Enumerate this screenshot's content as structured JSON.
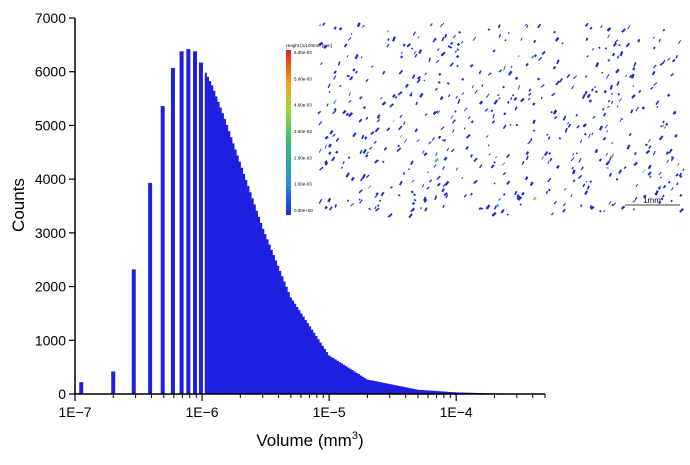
{
  "chart_data": {
    "type": "bar",
    "xlabel": "Volume (mm",
    "xlabel_sup": "3",
    "xlabel_end": ")",
    "ylabel": "Counts",
    "x_scale": "log",
    "xlim": [
      1e-07,
      0.0005
    ],
    "ylim": [
      0,
      7000
    ],
    "x_ticks": [
      1e-07,
      1e-06,
      1e-05,
      0.0001
    ],
    "x_tick_labels": [
      "1E−7",
      "1E−6",
      "1E−5",
      "1E−4"
    ],
    "y_ticks": [
      0,
      1000,
      2000,
      3000,
      4000,
      5000,
      6000,
      7000
    ],
    "y_tick_labels": [
      "0",
      "1000",
      "2000",
      "3000",
      "4000",
      "5000",
      "6000",
      "7000"
    ],
    "bar_color": "#1f1fe0",
    "discrete_bars": [
      {
        "x": 1.12e-07,
        "y": 220
      },
      {
        "x": 2e-07,
        "y": 420
      },
      {
        "x": 2.9e-07,
        "y": 2320
      },
      {
        "x": 3.9e-07,
        "y": 3930
      },
      {
        "x": 4.9e-07,
        "y": 5360
      },
      {
        "x": 5.9e-07,
        "y": 6070
      },
      {
        "x": 6.9e-07,
        "y": 6380
      },
      {
        "x": 7.8e-07,
        "y": 6420
      },
      {
        "x": 8.8e-07,
        "y": 6380
      },
      {
        "x": 9.8e-07,
        "y": 6170
      }
    ],
    "continuous_envelope": [
      {
        "x": 1.05e-06,
        "y": 6020
      },
      {
        "x": 1.2e-06,
        "y": 5750
      },
      {
        "x": 1.5e-06,
        "y": 5150
      },
      {
        "x": 2e-06,
        "y": 4300
      },
      {
        "x": 3e-06,
        "y": 3100
      },
      {
        "x": 5e-06,
        "y": 1800
      },
      {
        "x": 1e-05,
        "y": 720
      },
      {
        "x": 2e-05,
        "y": 270
      },
      {
        "x": 5e-05,
        "y": 80
      },
      {
        "x": 0.0001,
        "y": 30
      },
      {
        "x": 0.0002,
        "y": 12
      },
      {
        "x": 0.0005,
        "y": 5
      }
    ]
  },
  "inset": {
    "colorbar_title": "Height (1/100mm [mm]",
    "colorbar_labels": [
      "6.00e-03",
      "5.00e-03",
      "4.00e-03",
      "3.00e-03",
      "2.00e-03",
      "1.00e-03",
      "0.00e+00"
    ],
    "scalebar_label": "1mm",
    "background": "#ffffff",
    "speck_color": "#1a2bd6",
    "accent_colors": [
      "#22b0d8",
      "#2fc26a",
      "#8fd13f"
    ]
  }
}
